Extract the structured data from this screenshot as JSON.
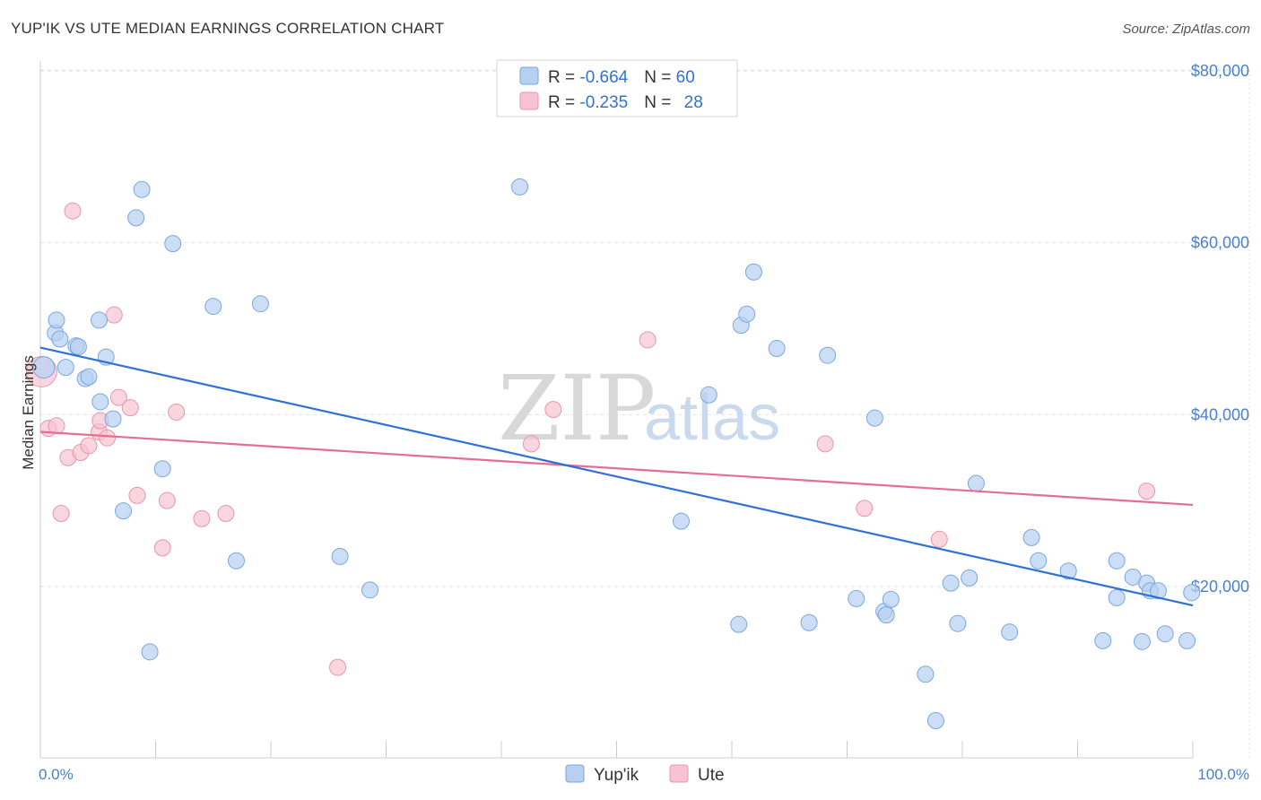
{
  "header": {
    "title": "YUP'IK VS UTE MEDIAN EARNINGS CORRELATION CHART",
    "source": "Source: ZipAtlas.com"
  },
  "watermark": {
    "zip": "ZIP",
    "atlas": "atlas"
  },
  "colors": {
    "yupik_fill": "#b7d0f2",
    "yupik_stroke": "#7aa7e0",
    "yupik_line": "#2f72d3",
    "ute_fill": "#f7c3d2",
    "ute_stroke": "#e994b0",
    "ute_line": "#e46e96",
    "value_text": "#2f72d3",
    "grid": "#e2e2e2"
  },
  "legend_top": {
    "rows": [
      {
        "r_label": "R = ",
        "r_value": "-0.664",
        "n_label": "N = ",
        "n_value": "60"
      },
      {
        "r_label": "R = ",
        "r_value": "-0.235",
        "n_label": "N = ",
        "n_value": "28"
      }
    ]
  },
  "legend_bottom": {
    "items": [
      "Yup'ik",
      "Ute"
    ]
  },
  "chart_data": {
    "type": "scatter",
    "title": "YUP'IK VS UTE MEDIAN EARNINGS CORRELATION CHART",
    "xlabel": "",
    "ylabel": "Median Earnings",
    "x_tick_labels": [
      "0.0%",
      "100.0%"
    ],
    "y_tick_labels": [
      "$20,000",
      "$40,000",
      "$60,000",
      "$80,000"
    ],
    "y_ticks": [
      20000,
      40000,
      60000,
      80000
    ],
    "xlim": [
      0,
      100
    ],
    "ylim": [
      0,
      82000
    ],
    "grid": true,
    "legend_position": "top-center",
    "series": [
      {
        "name": "Yup'ik",
        "r": -0.664,
        "n": 60,
        "trend": {
          "x": [
            0,
            100
          ],
          "y": [
            47800,
            17800
          ]
        },
        "points": [
          {
            "x": 0.3,
            "y": 45500
          },
          {
            "x": 1.3,
            "y": 49500
          },
          {
            "x": 1.4,
            "y": 51000
          },
          {
            "x": 1.7,
            "y": 48800
          },
          {
            "x": 2.2,
            "y": 45500
          },
          {
            "x": 3.1,
            "y": 48000
          },
          {
            "x": 3.3,
            "y": 47900
          },
          {
            "x": 3.9,
            "y": 44200
          },
          {
            "x": 4.2,
            "y": 44400
          },
          {
            "x": 5.1,
            "y": 51000
          },
          {
            "x": 5.2,
            "y": 41500
          },
          {
            "x": 5.7,
            "y": 46700
          },
          {
            "x": 6.3,
            "y": 39500
          },
          {
            "x": 7.2,
            "y": 28800
          },
          {
            "x": 8.3,
            "y": 62900
          },
          {
            "x": 8.8,
            "y": 66200
          },
          {
            "x": 9.5,
            "y": 12400
          },
          {
            "x": 10.6,
            "y": 33700
          },
          {
            "x": 11.5,
            "y": 59900
          },
          {
            "x": 15.0,
            "y": 52600
          },
          {
            "x": 17.0,
            "y": 23000
          },
          {
            "x": 19.1,
            "y": 52900
          },
          {
            "x": 26.0,
            "y": 23500
          },
          {
            "x": 28.6,
            "y": 19600
          },
          {
            "x": 41.6,
            "y": 66500
          },
          {
            "x": 55.6,
            "y": 27600
          },
          {
            "x": 58.0,
            "y": 42300
          },
          {
            "x": 60.6,
            "y": 15600
          },
          {
            "x": 60.8,
            "y": 50400
          },
          {
            "x": 61.3,
            "y": 51700
          },
          {
            "x": 61.9,
            "y": 56600
          },
          {
            "x": 63.9,
            "y": 47700
          },
          {
            "x": 66.7,
            "y": 15800
          },
          {
            "x": 68.3,
            "y": 46900
          },
          {
            "x": 70.8,
            "y": 18600
          },
          {
            "x": 72.4,
            "y": 39600
          },
          {
            "x": 73.2,
            "y": 17100
          },
          {
            "x": 73.4,
            "y": 16700
          },
          {
            "x": 73.8,
            "y": 18500
          },
          {
            "x": 76.8,
            "y": 9800
          },
          {
            "x": 77.7,
            "y": 4400
          },
          {
            "x": 79.0,
            "y": 20400
          },
          {
            "x": 79.6,
            "y": 15700
          },
          {
            "x": 80.6,
            "y": 21000
          },
          {
            "x": 81.2,
            "y": 32000
          },
          {
            "x": 84.1,
            "y": 14700
          },
          {
            "x": 86.0,
            "y": 25700
          },
          {
            "x": 86.6,
            "y": 23000
          },
          {
            "x": 89.2,
            "y": 21800
          },
          {
            "x": 92.2,
            "y": 13700
          },
          {
            "x": 93.4,
            "y": 23000
          },
          {
            "x": 93.4,
            "y": 18700
          },
          {
            "x": 94.8,
            "y": 21100
          },
          {
            "x": 95.6,
            "y": 13600
          },
          {
            "x": 96.0,
            "y": 20400
          },
          {
            "x": 96.3,
            "y": 19500
          },
          {
            "x": 97.0,
            "y": 19500
          },
          {
            "x": 97.6,
            "y": 14500
          },
          {
            "x": 99.5,
            "y": 13700
          },
          {
            "x": 99.9,
            "y": 19300
          }
        ]
      },
      {
        "name": "Ute",
        "r": -0.235,
        "n": 28,
        "trend": {
          "x": [
            0,
            100
          ],
          "y": [
            38000,
            29500
          ]
        },
        "points": [
          {
            "x": 0.1,
            "y": 45000
          },
          {
            "x": 0.7,
            "y": 38400
          },
          {
            "x": 1.4,
            "y": 38700
          },
          {
            "x": 1.8,
            "y": 28500
          },
          {
            "x": 2.4,
            "y": 35000
          },
          {
            "x": 2.8,
            "y": 63700
          },
          {
            "x": 3.5,
            "y": 35600
          },
          {
            "x": 4.2,
            "y": 36400
          },
          {
            "x": 5.1,
            "y": 38000
          },
          {
            "x": 5.2,
            "y": 39300
          },
          {
            "x": 5.8,
            "y": 37300
          },
          {
            "x": 6.4,
            "y": 51600
          },
          {
            "x": 6.8,
            "y": 42000
          },
          {
            "x": 7.8,
            "y": 40800
          },
          {
            "x": 8.4,
            "y": 30600
          },
          {
            "x": 10.6,
            "y": 24500
          },
          {
            "x": 11.0,
            "y": 30000
          },
          {
            "x": 11.8,
            "y": 40300
          },
          {
            "x": 14.0,
            "y": 27900
          },
          {
            "x": 16.1,
            "y": 28500
          },
          {
            "x": 25.8,
            "y": 10600
          },
          {
            "x": 42.6,
            "y": 36600
          },
          {
            "x": 44.5,
            "y": 40600
          },
          {
            "x": 52.7,
            "y": 48700
          },
          {
            "x": 68.1,
            "y": 36600
          },
          {
            "x": 71.5,
            "y": 29100
          },
          {
            "x": 78.0,
            "y": 25500
          },
          {
            "x": 96.0,
            "y": 31100
          }
        ]
      }
    ]
  }
}
